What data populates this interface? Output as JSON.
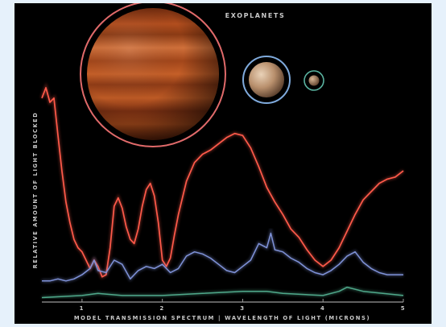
{
  "chart_data": {
    "type": "line",
    "title": "EXOPLANETS",
    "xlabel": "MODEL TRANSMISSION SPECTRUM | WAVELENGTH OF LIGHT (MICRONS)",
    "ylabel": "RELATIVE AMOUNT OF LIGHT BLOCKED",
    "xlim": [
      0.5,
      5
    ],
    "ylim": [
      0,
      1
    ],
    "xticks": [
      1,
      2,
      3,
      4,
      5
    ],
    "xtick_labels": [
      "1",
      "2",
      "3",
      "4",
      "5"
    ],
    "grid": false,
    "legend": "none (planet icons above the chart identify the series by size)",
    "colors": {
      "large": "#ff5a4a",
      "medium": "#7f92d8",
      "small": "#4fa88a",
      "axis": "#9a9a9a"
    },
    "series": [
      {
        "x": [
          0.5,
          0.55,
          0.6,
          0.65,
          0.7,
          0.75,
          0.8,
          0.85,
          0.9,
          0.95,
          1.0,
          1.05,
          1.1,
          1.15,
          1.2,
          1.25,
          1.3,
          1.35,
          1.4,
          1.45,
          1.5,
          1.55,
          1.6,
          1.65,
          1.7,
          1.75,
          1.8,
          1.85,
          1.9,
          1.95,
          2.0,
          2.05,
          2.1,
          2.15,
          2.2,
          2.3,
          2.4,
          2.5,
          2.6,
          2.7,
          2.8,
          2.9,
          3.0,
          3.1,
          3.2,
          3.3,
          3.4,
          3.5,
          3.6,
          3.7,
          3.8,
          3.9,
          4.0,
          4.1,
          4.2,
          4.3,
          4.4,
          4.5,
          4.6,
          4.7,
          4.8,
          4.9,
          5.0
        ],
        "values": [
          0.9,
          0.95,
          0.88,
          0.9,
          0.72,
          0.55,
          0.4,
          0.3,
          0.22,
          0.18,
          0.16,
          0.12,
          0.08,
          0.12,
          0.09,
          0.04,
          0.05,
          0.18,
          0.38,
          0.42,
          0.37,
          0.28,
          0.22,
          0.2,
          0.27,
          0.38,
          0.46,
          0.49,
          0.43,
          0.3,
          0.12,
          0.09,
          0.13,
          0.24,
          0.34,
          0.5,
          0.59,
          0.63,
          0.65,
          0.68,
          0.71,
          0.73,
          0.72,
          0.66,
          0.57,
          0.47,
          0.4,
          0.34,
          0.27,
          0.23,
          0.17,
          0.12,
          0.09,
          0.12,
          0.18,
          0.26,
          0.34,
          0.41,
          0.45,
          0.49,
          0.51,
          0.52,
          0.55
        ]
      },
      {
        "x": [
          0.5,
          0.6,
          0.7,
          0.8,
          0.9,
          1.0,
          1.1,
          1.15,
          1.2,
          1.3,
          1.4,
          1.5,
          1.6,
          1.7,
          1.8,
          1.9,
          2.0,
          2.1,
          2.2,
          2.3,
          2.4,
          2.5,
          2.6,
          2.7,
          2.8,
          2.9,
          3.0,
          3.1,
          3.2,
          3.3,
          3.35,
          3.4,
          3.5,
          3.6,
          3.7,
          3.8,
          3.9,
          4.0,
          4.1,
          4.2,
          4.3,
          4.4,
          4.5,
          4.6,
          4.7,
          4.8,
          4.9,
          5.0
        ],
        "values": [
          0.02,
          0.02,
          0.03,
          0.02,
          0.03,
          0.05,
          0.08,
          0.12,
          0.07,
          0.06,
          0.12,
          0.1,
          0.03,
          0.07,
          0.09,
          0.08,
          0.1,
          0.06,
          0.08,
          0.14,
          0.16,
          0.15,
          0.13,
          0.1,
          0.07,
          0.06,
          0.09,
          0.12,
          0.2,
          0.18,
          0.25,
          0.17,
          0.16,
          0.13,
          0.11,
          0.08,
          0.06,
          0.05,
          0.07,
          0.1,
          0.14,
          0.16,
          0.11,
          0.08,
          0.06,
          0.05,
          0.05,
          0.05
        ]
      },
      {
        "x": [
          0.5,
          1.0,
          1.2,
          1.5,
          2.0,
          2.5,
          3.0,
          3.3,
          3.5,
          4.0,
          4.2,
          4.3,
          4.5,
          5.0
        ],
        "values": [
          -0.06,
          -0.05,
          -0.04,
          -0.05,
          -0.05,
          -0.04,
          -0.03,
          -0.03,
          -0.04,
          -0.05,
          -0.03,
          -0.01,
          -0.03,
          -0.05
        ]
      }
    ]
  }
}
